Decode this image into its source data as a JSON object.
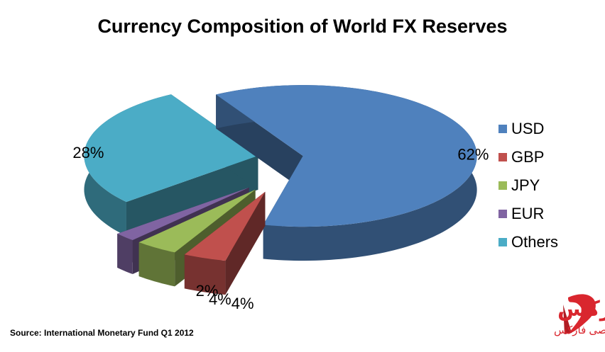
{
  "chart_data": {
    "type": "pie3d",
    "title": "Currency Composition of World FX Reserves",
    "categories": [
      "USD",
      "GBP",
      "JPY",
      "EUR",
      "Others"
    ],
    "values": [
      62,
      4,
      4,
      2,
      28
    ],
    "value_labels": [
      "62%",
      "4%",
      "4%",
      "2%",
      "28%"
    ],
    "colors": [
      "#4f81bd",
      "#c0504d",
      "#9bbb59",
      "#8064a2",
      "#4bacc6"
    ],
    "legend": "right",
    "source": "Source: International Monetary Fund Q1 2012"
  },
  "watermark": {
    "title": "پرشین فارکس",
    "subtitle": "مرجع تخصصی فارکس"
  }
}
